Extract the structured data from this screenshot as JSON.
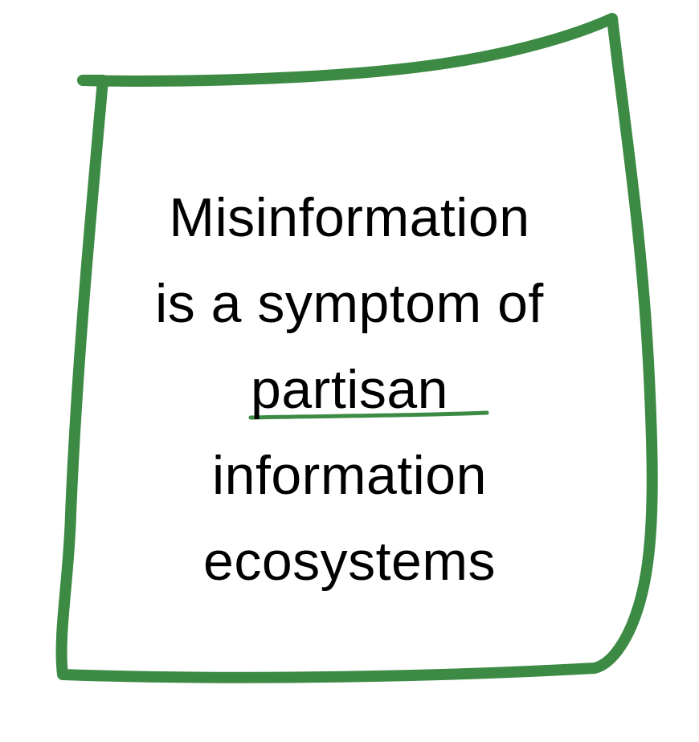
{
  "colors": {
    "frame_stroke": "#3d8a45",
    "text": "#000000",
    "background": "#ffffff"
  },
  "card": {
    "lines": [
      "Misinformation",
      "is a symptom of",
      "partisan",
      "information",
      "ecosystems"
    ],
    "emphasized_word": "partisan"
  }
}
